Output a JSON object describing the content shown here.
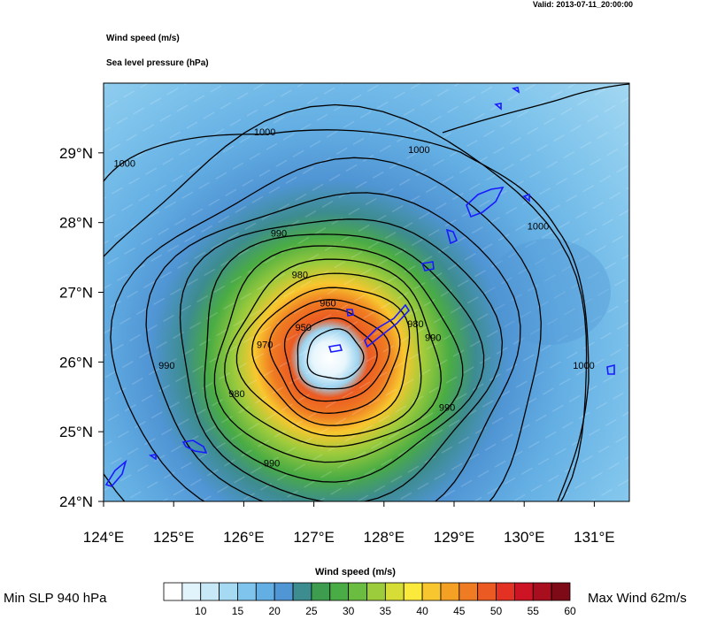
{
  "header": {
    "valid_text": "Valid: 2013-07-11_20:00:00",
    "wind_title": "Wind speed   (m/s)",
    "slp_title": "Sea level pressure   (hPa)"
  },
  "map": {
    "lon_range": [
      124,
      131.5
    ],
    "lat_range": [
      24,
      30
    ],
    "lon_ticks": [
      "124°E",
      "125°E",
      "126°E",
      "127°E",
      "128°E",
      "129°E",
      "130°E",
      "131°E"
    ],
    "lat_ticks": [
      "24°N",
      "25°N",
      "26°N",
      "27°N",
      "28°N",
      "29°N"
    ],
    "storm_center": {
      "lon": 127.3,
      "lat": 26.1
    },
    "isobar_labels": [
      {
        "text": "1000",
        "lon": 124.3,
        "lat": 28.8
      },
      {
        "text": "1000",
        "lon": 126.3,
        "lat": 29.25
      },
      {
        "text": "1000",
        "lon": 128.5,
        "lat": 29.0
      },
      {
        "text": "1000",
        "lon": 130.2,
        "lat": 27.9
      },
      {
        "text": "1000",
        "lon": 130.85,
        "lat": 25.9
      },
      {
        "text": "990",
        "lon": 126.5,
        "lat": 27.8
      },
      {
        "text": "990",
        "lon": 128.7,
        "lat": 26.3
      },
      {
        "text": "990",
        "lon": 124.9,
        "lat": 25.9
      },
      {
        "text": "990",
        "lon": 128.9,
        "lat": 25.3
      },
      {
        "text": "990",
        "lon": 126.4,
        "lat": 24.5
      },
      {
        "text": "980",
        "lon": 126.8,
        "lat": 27.2
      },
      {
        "text": "980",
        "lon": 128.45,
        "lat": 26.5
      },
      {
        "text": "980",
        "lon": 125.9,
        "lat": 25.5
      },
      {
        "text": "970",
        "lon": 126.3,
        "lat": 26.2
      },
      {
        "text": "960",
        "lon": 127.2,
        "lat": 26.8
      },
      {
        "text": "950",
        "lon": 126.85,
        "lat": 26.45
      }
    ],
    "colors": {
      "coast": "#1a1aff",
      "isobar": "#000000"
    }
  },
  "legend": {
    "title": "Wind speed   (m/s)",
    "colors": [
      "#ffffff",
      "#e2f4fb",
      "#c7e9f7",
      "#a6d9f2",
      "#7fc4ec",
      "#63aee3",
      "#5095d4",
      "#3d8c8f",
      "#3e9c4f",
      "#4aac44",
      "#6abd41",
      "#9ccb3c",
      "#d5dd36",
      "#fbe93b",
      "#f8c72f",
      "#f4a025",
      "#ef7c22",
      "#eb5a22",
      "#e33123",
      "#cc1424",
      "#a80e1d",
      "#7d0a16"
    ],
    "labels": [
      "10",
      "15",
      "20",
      "25",
      "30",
      "35",
      "40",
      "45",
      "50",
      "55",
      "60"
    ],
    "min_slp": "Min SLP  940 hPa",
    "max_wind": "Max Wind  62m/s"
  }
}
